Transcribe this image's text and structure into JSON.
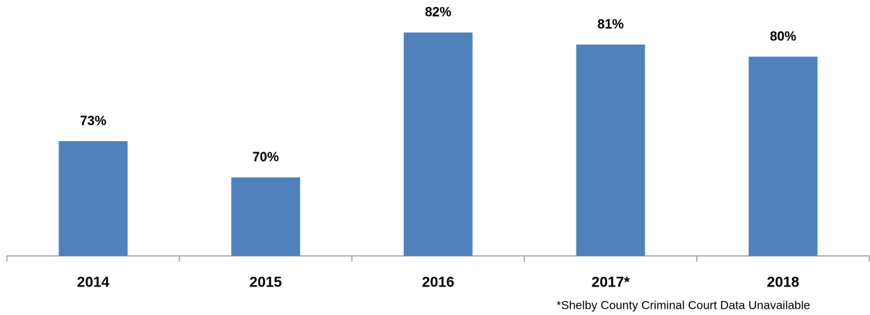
{
  "chart_data": {
    "type": "bar",
    "categories": [
      "2014",
      "2015",
      "2016",
      "2017*",
      "2018"
    ],
    "values": [
      73,
      70,
      82,
      81,
      80
    ],
    "value_labels": [
      "73%",
      "70%",
      "82%",
      "81%",
      "80%"
    ],
    "color": "#4f81bd",
    "ylim": [
      63.5,
      84
    ],
    "annotation": "*Shelby County Criminal Court Data Unavailable"
  }
}
